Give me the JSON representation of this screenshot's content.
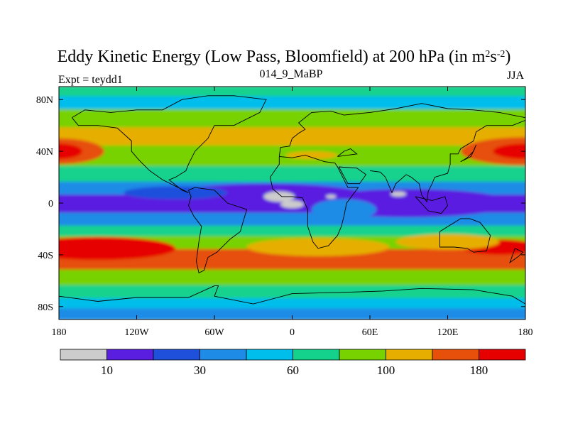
{
  "title": {
    "text": "Eddy Kinetic Energy (Low Pass, Bloomfield) at 200 hPa (in m",
    "sup1": "2",
    "mid": "s",
    "sup2": "-2",
    "end": ")"
  },
  "subtitle_left": "Expt = teydd1",
  "subtitle_center": "014_9_MaBP",
  "subtitle_right": "JJA",
  "map_data": {
    "type": "filled-contour",
    "projection": "cylindrical-equidistant",
    "lon_range": [
      -180,
      180
    ],
    "lat_range": [
      -90,
      90
    ],
    "x_ticks": [
      {
        "lon": -180,
        "label": "180"
      },
      {
        "lon": -120,
        "label": "120W"
      },
      {
        "lon": -60,
        "label": "60W"
      },
      {
        "lon": 0,
        "label": "0"
      },
      {
        "lon": 60,
        "label": "60E"
      },
      {
        "lon": 120,
        "label": "120E"
      },
      {
        "lon": 180,
        "label": "180"
      }
    ],
    "y_ticks": [
      {
        "lat": 80,
        "label": "80N"
      },
      {
        "lat": 40,
        "label": "40N"
      },
      {
        "lat": 0,
        "label": "0"
      },
      {
        "lat": -40,
        "label": "40S"
      },
      {
        "lat": -80,
        "label": "80S"
      }
    ],
    "bands": [
      {
        "lat": [
          82,
          90
        ],
        "level": 5
      },
      {
        "lat": [
          72,
          82
        ],
        "level": 4
      },
      {
        "lat": [
          58,
          72
        ],
        "level": 6
      },
      {
        "lat": [
          44,
          58
        ],
        "level": 7
      },
      {
        "lat": [
          28,
          44
        ],
        "level": 6
      },
      {
        "lat": [
          16,
          28
        ],
        "level": 5
      },
      {
        "lat": [
          6,
          16
        ],
        "level": 3
      },
      {
        "lat": [
          -8,
          6
        ],
        "level": 1
      },
      {
        "lat": [
          -18,
          -8
        ],
        "level": 3
      },
      {
        "lat": [
          -26,
          -18
        ],
        "level": 5
      },
      {
        "lat": [
          -36,
          -26
        ],
        "level": 6
      },
      {
        "lat": [
          -52,
          -36
        ],
        "level": 8
      },
      {
        "lat": [
          -64,
          -52
        ],
        "level": 6
      },
      {
        "lat": [
          -74,
          -64
        ],
        "level": 5
      },
      {
        "lat": [
          -82,
          -74
        ],
        "level": 4
      },
      {
        "lat": [
          -90,
          -82
        ],
        "level": 3
      }
    ],
    "blobs": [
      {
        "lon": -180,
        "lat": 40,
        "rlon": 35,
        "rlat": 10,
        "level": 8
      },
      {
        "lon": -180,
        "lat": 40,
        "rlon": 18,
        "rlat": 6,
        "level": 9
      },
      {
        "lon": 180,
        "lat": 40,
        "rlon": 50,
        "rlat": 11,
        "level": 8
      },
      {
        "lon": 180,
        "lat": 40,
        "rlon": 25,
        "rlat": 6,
        "level": 9
      },
      {
        "lon": -150,
        "lat": -35,
        "rlon": 60,
        "rlat": 9,
        "level": 9
      },
      {
        "lon": 160,
        "lat": -34,
        "rlon": 30,
        "rlat": 6,
        "level": 9
      },
      {
        "lon": 20,
        "lat": -34,
        "rlon": 55,
        "rlat": 7,
        "level": 7
      },
      {
        "lon": 120,
        "lat": -30,
        "rlon": 40,
        "rlat": 6,
        "level": 7
      },
      {
        "lon": -20,
        "lat": 5,
        "rlon": 80,
        "rlat": 10,
        "level": 1
      },
      {
        "lon": 90,
        "lat": 0,
        "rlon": 80,
        "rlat": 11,
        "level": 1
      },
      {
        "lon": -90,
        "lat": 8,
        "rlon": 40,
        "rlat": 5,
        "level": 2
      },
      {
        "lon": 40,
        "lat": -5,
        "rlon": 25,
        "rlat": 8,
        "level": 3
      },
      {
        "lon": -10,
        "lat": 5,
        "rlon": 12,
        "rlat": 4,
        "level": 0
      },
      {
        "lon": 0,
        "lat": -1,
        "rlon": 9,
        "rlat": 3,
        "level": 0
      },
      {
        "lon": 30,
        "lat": 5,
        "rlon": 4,
        "rlat": 1.5,
        "level": 0
      },
      {
        "lon": 82,
        "lat": 7,
        "rlon": 6,
        "rlat": 2,
        "level": 0
      },
      {
        "lon": 15,
        "lat": 37,
        "rlon": 20,
        "rlat": 3,
        "level": 7
      }
    ],
    "coastlines": [
      [
        [
          -170,
          66
        ],
        [
          -160,
          72
        ],
        [
          -140,
          70
        ],
        [
          -120,
          72
        ],
        [
          -100,
          72
        ],
        [
          -85,
          80
        ],
        [
          -65,
          83
        ],
        [
          -45,
          83
        ],
        [
          -20,
          80
        ],
        [
          -25,
          70
        ],
        [
          -45,
          60
        ],
        [
          -60,
          60
        ],
        [
          -65,
          50
        ],
        [
          -75,
          40
        ],
        [
          -80,
          30
        ],
        [
          -82,
          25
        ],
        [
          -90,
          20
        ],
        [
          -95,
          18
        ],
        [
          -85,
          10
        ],
        [
          -80,
          8
        ],
        [
          -100,
          18
        ],
        [
          -110,
          25
        ],
        [
          -118,
          33
        ],
        [
          -124,
          40
        ],
        [
          -124,
          48
        ],
        [
          -135,
          58
        ],
        [
          -150,
          60
        ],
        [
          -165,
          60
        ],
        [
          -170,
          66
        ]
      ],
      [
        [
          -80,
          10
        ],
        [
          -75,
          12
        ],
        [
          -60,
          10
        ],
        [
          -50,
          0
        ],
        [
          -35,
          -5
        ],
        [
          -38,
          -15
        ],
        [
          -40,
          -22
        ],
        [
          -48,
          -28
        ],
        [
          -58,
          -38
        ],
        [
          -65,
          -42
        ],
        [
          -68,
          -52
        ],
        [
          -72,
          -54
        ],
        [
          -74,
          -45
        ],
        [
          -72,
          -30
        ],
        [
          -70,
          -18
        ],
        [
          -76,
          -10
        ],
        [
          -80,
          -2
        ],
        [
          -78,
          5
        ],
        [
          -80,
          10
        ]
      ],
      [
        [
          -10,
          36
        ],
        [
          0,
          35
        ],
        [
          10,
          37
        ],
        [
          25,
          32
        ],
        [
          33,
          31
        ],
        [
          35,
          28
        ],
        [
          40,
          18
        ],
        [
          43,
          12
        ],
        [
          51,
          12
        ],
        [
          42,
          0
        ],
        [
          40,
          -10
        ],
        [
          38,
          -18
        ],
        [
          35,
          -25
        ],
        [
          28,
          -33
        ],
        [
          20,
          -35
        ],
        [
          16,
          -30
        ],
        [
          12,
          -18
        ],
        [
          12,
          -5
        ],
        [
          8,
          4
        ],
        [
          0,
          5
        ],
        [
          -8,
          5
        ],
        [
          -15,
          11
        ],
        [
          -17,
          20
        ],
        [
          -10,
          30
        ],
        [
          -10,
          36
        ]
      ],
      [
        [
          -10,
          36
        ],
        [
          -9,
          43
        ],
        [
          -2,
          44
        ],
        [
          0,
          50
        ],
        [
          5,
          54
        ],
        [
          10,
          57
        ],
        [
          5,
          62
        ],
        [
          15,
          70
        ],
        [
          30,
          71
        ],
        [
          40,
          68
        ],
        [
          60,
          70
        ],
        [
          80,
          73
        ],
        [
          100,
          77
        ],
        [
          120,
          73
        ],
        [
          140,
          72
        ],
        [
          160,
          70
        ],
        [
          180,
          66
        ]
      ],
      [
        [
          35,
          36
        ],
        [
          40,
          40
        ],
        [
          45,
          42
        ],
        [
          50,
          38
        ],
        [
          35,
          36
        ]
      ],
      [
        [
          36,
          28
        ],
        [
          43,
          15
        ],
        [
          52,
          15
        ],
        [
          57,
          22
        ],
        [
          50,
          27
        ],
        [
          36,
          28
        ]
      ],
      [
        [
          60,
          25
        ],
        [
          68,
          24
        ],
        [
          72,
          20
        ],
        [
          77,
          8
        ],
        [
          80,
          15
        ],
        [
          88,
          22
        ],
        [
          92,
          20
        ],
        [
          98,
          15
        ],
        [
          100,
          6
        ],
        [
          104,
          1
        ],
        [
          105,
          9
        ],
        [
          108,
          15
        ],
        [
          110,
          20
        ],
        [
          120,
          23
        ],
        [
          122,
          30
        ],
        [
          122,
          38
        ],
        [
          128,
          38
        ],
        [
          130,
          42
        ],
        [
          140,
          48
        ],
        [
          142,
          55
        ],
        [
          150,
          60
        ],
        [
          162,
          60
        ],
        [
          170,
          60
        ],
        [
          180,
          64
        ]
      ],
      [
        [
          114,
          -22
        ],
        [
          114,
          -34
        ],
        [
          125,
          -34
        ],
        [
          135,
          -35
        ],
        [
          140,
          -38
        ],
        [
          150,
          -37
        ],
        [
          153,
          -25
        ],
        [
          145,
          -15
        ],
        [
          137,
          -12
        ],
        [
          130,
          -12
        ],
        [
          122,
          -17
        ],
        [
          114,
          -22
        ]
      ],
      [
        [
          95,
          5
        ],
        [
          105,
          -6
        ],
        [
          115,
          -8
        ],
        [
          120,
          -2
        ],
        [
          118,
          5
        ],
        [
          108,
          2
        ],
        [
          95,
          5
        ]
      ],
      [
        [
          172,
          -35
        ],
        [
          178,
          -38
        ],
        [
          175,
          -41
        ],
        [
          168,
          -46
        ],
        [
          172,
          -35
        ]
      ],
      [
        [
          130,
          32
        ],
        [
          135,
          35
        ],
        [
          140,
          40
        ],
        [
          142,
          45
        ],
        [
          138,
          36
        ],
        [
          130,
          32
        ]
      ],
      [
        [
          -180,
          -72
        ],
        [
          -150,
          -76
        ],
        [
          -120,
          -73
        ],
        [
          -80,
          -73
        ],
        [
          -60,
          -64
        ],
        [
          -57,
          -64
        ],
        [
          -60,
          -72
        ],
        [
          -30,
          -78
        ],
        [
          0,
          -70
        ],
        [
          40,
          -69
        ],
        [
          70,
          -68
        ],
        [
          100,
          -66
        ],
        [
          140,
          -67
        ],
        [
          170,
          -72
        ],
        [
          180,
          -78
        ]
      ]
    ]
  },
  "legend": {
    "colors": [
      "#cccccc",
      "#5a1ee0",
      "#1f50dc",
      "#1e8ce6",
      "#00beeb",
      "#14d28c",
      "#78d200",
      "#e6af00",
      "#e6500a",
      "#e60000"
    ],
    "labels": [
      {
        "after_box": 1,
        "text": "10"
      },
      {
        "after_box": 3,
        "text": "30"
      },
      {
        "after_box": 5,
        "text": "60"
      },
      {
        "after_box": 7,
        "text": "100"
      },
      {
        "after_box": 9,
        "text": "180"
      }
    ]
  }
}
